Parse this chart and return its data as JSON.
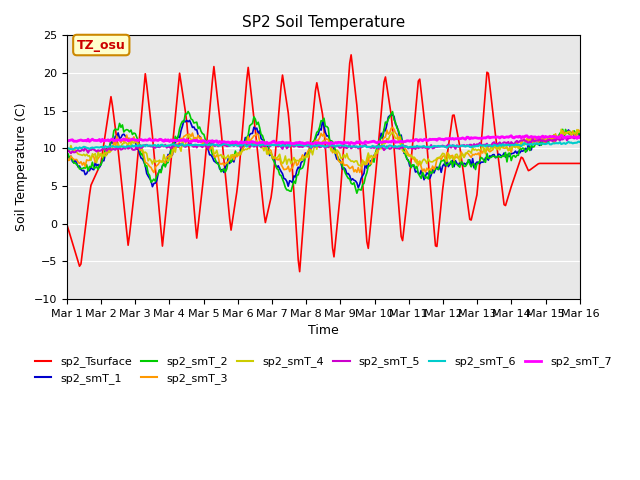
{
  "title": "SP2 Soil Temperature",
  "xlabel": "Time",
  "ylabel": "Soil Temperature (C)",
  "ylim": [
    -10,
    25
  ],
  "xlim": [
    0,
    15
  ],
  "plot_bg": "#e8e8e8",
  "tz_label": "TZ_osu",
  "series_colors": {
    "sp2_Tsurface": "#ff0000",
    "sp2_smT_1": "#0000cc",
    "sp2_smT_2": "#00cc00",
    "sp2_smT_3": "#ff9900",
    "sp2_smT_4": "#cccc00",
    "sp2_smT_5": "#cc00cc",
    "sp2_smT_6": "#00cccc",
    "sp2_smT_7": "#ff00ff"
  },
  "xtick_labels": [
    "Mar 1",
    "Mar 2",
    "Mar 3",
    "Mar 4",
    "Mar 5",
    "Mar 6",
    "Mar 7",
    "Mar 8",
    "Mar 9",
    "Mar 10",
    "Mar 11",
    "Mar 12",
    "Mar 13",
    "Mar 14",
    "Mar 15",
    "Mar 16"
  ],
  "xtick_positions": [
    0,
    1,
    2,
    3,
    4,
    5,
    6,
    7,
    8,
    9,
    10,
    11,
    12,
    13,
    14,
    15
  ],
  "surface_xp": [
    0,
    0.4,
    0.7,
    1.0,
    1.3,
    1.5,
    1.8,
    2.0,
    2.3,
    2.5,
    2.8,
    3.0,
    3.3,
    3.5,
    3.8,
    4.0,
    4.3,
    4.5,
    4.8,
    5.0,
    5.3,
    5.5,
    5.8,
    6.0,
    6.3,
    6.5,
    6.8,
    7.0,
    7.3,
    7.5,
    7.8,
    8.0,
    8.3,
    8.5,
    8.8,
    9.0,
    9.3,
    9.5,
    9.8,
    10.0,
    10.3,
    10.5,
    10.8,
    11.0,
    11.3,
    11.5,
    11.8,
    12.0,
    12.3,
    12.5,
    12.8,
    13.0,
    13.3,
    13.5,
    13.8,
    14.0,
    14.5,
    15.0
  ],
  "surface_fp": [
    0,
    -6,
    5,
    8,
    17,
    10,
    -3,
    5,
    20,
    12,
    -3,
    6,
    20,
    14,
    -2,
    6,
    21,
    13,
    -1,
    5,
    21,
    13,
    0,
    4,
    20,
    14,
    -7,
    5,
    19,
    14,
    -5,
    4,
    23,
    15,
    -4,
    5,
    20,
    14,
    -3,
    5,
    20,
    12,
    -4,
    5,
    15,
    10,
    0,
    4,
    21,
    13,
    2,
    5,
    9,
    7,
    8,
    8,
    8,
    8
  ],
  "smT1_xp": [
    0,
    0.5,
    1,
    1.5,
    2,
    2.5,
    3,
    3.5,
    4,
    4.5,
    5,
    5.5,
    6,
    6.5,
    7,
    7.5,
    8,
    8.5,
    9,
    9.5,
    10,
    10.5,
    11,
    11.5,
    12,
    12.5,
    13,
    13.5,
    14,
    14.5,
    15
  ],
  "smT1_fp": [
    9,
    7,
    8,
    12,
    11,
    5,
    9,
    14,
    11,
    7,
    9,
    13,
    9,
    5,
    9,
    13,
    8,
    5,
    9,
    15,
    8,
    6,
    8,
    8,
    8,
    9,
    9,
    10,
    11,
    12,
    12
  ],
  "smT2_fp": [
    9,
    7,
    8,
    13,
    12,
    5,
    9,
    15,
    12,
    7,
    9,
    14,
    9,
    4,
    9,
    14,
    8,
    4,
    9,
    15,
    8,
    6,
    8,
    8,
    8,
    9,
    9,
    10,
    11,
    12,
    12
  ],
  "smT3_fp": [
    9,
    8,
    9,
    11,
    11,
    7,
    9,
    12,
    11,
    8,
    9,
    12,
    9,
    7,
    9,
    12,
    8,
    7,
    9,
    13,
    9,
    7,
    9,
    9,
    9,
    10,
    10,
    11,
    11,
    12,
    12
  ],
  "smT4_fp": [
    10,
    9,
    9,
    10,
    11,
    8,
    9,
    11,
    11,
    9,
    9,
    11,
    9,
    8,
    9,
    11,
    9,
    8,
    9,
    12,
    9,
    8,
    9,
    9,
    10,
    10,
    10,
    11,
    11,
    12,
    12
  ],
  "smT5_xp": [
    0,
    5,
    10,
    15
  ],
  "smT5_fp": [
    9.5,
    10.0,
    10.5,
    11.5
  ],
  "smT6_xp": [
    0,
    5,
    10,
    15
  ],
  "smT6_fp": [
    10.0,
    10.2,
    10.5,
    10.8
  ],
  "smT7_xp": [
    0,
    5,
    10,
    15
  ],
  "smT7_fp": [
    11.0,
    10.8,
    11.0,
    11.5
  ]
}
